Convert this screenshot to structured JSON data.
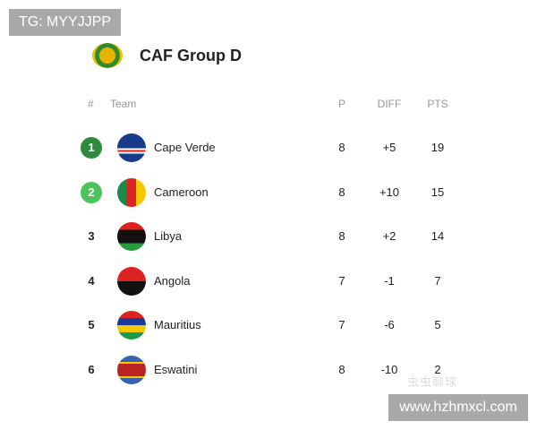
{
  "watermarks": {
    "tg": "TG: MYYJJPP",
    "site": "www.hzhmxcl.com",
    "faint": "虫虫聊球"
  },
  "header": {
    "title": "CAF Group D",
    "logo": "caf-logo"
  },
  "columns": {
    "rank": "#",
    "team": "Team",
    "played": "P",
    "diff": "DIFF",
    "points": "PTS"
  },
  "colors": {
    "rank1": "#2e8b3e",
    "rank2": "#4cc45a"
  },
  "rows": [
    {
      "rank": "1",
      "team": "Cape Verde",
      "p": "8",
      "diff": "+5",
      "pts": "19"
    },
    {
      "rank": "2",
      "team": "Cameroon",
      "p": "8",
      "diff": "+10",
      "pts": "15"
    },
    {
      "rank": "3",
      "team": "Libya",
      "p": "8",
      "diff": "+2",
      "pts": "14"
    },
    {
      "rank": "4",
      "team": "Angola",
      "p": "7",
      "diff": "-1",
      "pts": "7"
    },
    {
      "rank": "5",
      "team": "Mauritius",
      "p": "7",
      "diff": "-6",
      "pts": "5"
    },
    {
      "rank": "6",
      "team": "Eswatini",
      "p": "8",
      "diff": "-10",
      "pts": "2"
    }
  ]
}
